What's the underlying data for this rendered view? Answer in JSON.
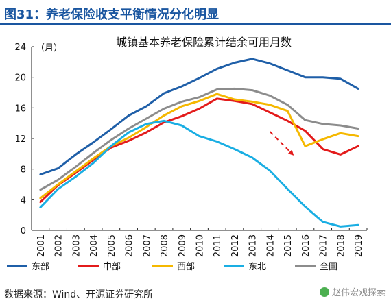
{
  "figure": {
    "title": "图31：养老保险收支平衡情况分化明显",
    "source": "数据来源：Wind、开源证券研究所",
    "watermark": "赵伟宏观探索"
  },
  "chart_data": {
    "type": "line",
    "title": "城镇基本养老保险累计结余可用月数",
    "ylabel": "（月）",
    "xlabel": "",
    "x": [
      "2001",
      "2002",
      "2003",
      "2004",
      "2005",
      "2006",
      "2007",
      "2008",
      "2009",
      "2010",
      "2011",
      "2012",
      "2013",
      "2014",
      "2015",
      "2016",
      "2017",
      "2018",
      "2019"
    ],
    "ylim": [
      0,
      24
    ],
    "yticks": [
      0,
      4,
      8,
      12,
      16,
      20,
      24
    ],
    "grid": false,
    "legend_position": "bottom",
    "series": [
      {
        "name": "东部",
        "color": "#1f5fa8",
        "values": [
          7.3,
          8.1,
          9.9,
          11.5,
          13.2,
          15.0,
          16.2,
          17.9,
          18.8,
          19.9,
          21.1,
          21.9,
          22.4,
          21.8,
          20.9,
          20.0,
          20.0,
          19.8,
          18.5
        ]
      },
      {
        "name": "中部",
        "color": "#e31b1b",
        "values": [
          3.7,
          5.9,
          7.5,
          9.2,
          10.8,
          11.7,
          12.8,
          14.1,
          14.9,
          15.9,
          17.2,
          16.9,
          16.5,
          15.4,
          14.3,
          13.0,
          10.6,
          9.9,
          11.0
        ]
      },
      {
        "name": "西部",
        "color": "#f5b800",
        "values": [
          4.2,
          6.0,
          7.7,
          9.4,
          11.0,
          12.1,
          13.5,
          15.0,
          16.2,
          16.9,
          17.8,
          17.1,
          16.8,
          16.4,
          15.6,
          11.0,
          11.9,
          12.7,
          12.3
        ]
      },
      {
        "name": "东北",
        "color": "#1aaee3",
        "values": [
          3.0,
          5.4,
          7.0,
          8.8,
          11.0,
          12.8,
          13.9,
          14.3,
          13.7,
          12.3,
          11.6,
          10.6,
          9.5,
          7.8,
          5.4,
          3.1,
          1.1,
          0.5,
          0.7
        ]
      },
      {
        "name": "全国",
        "color": "#8c8c8c",
        "values": [
          5.3,
          6.6,
          8.3,
          10.1,
          11.8,
          13.3,
          14.6,
          15.9,
          16.8,
          17.4,
          18.4,
          18.5,
          18.3,
          17.6,
          16.4,
          14.4,
          13.9,
          13.7,
          13.3
        ]
      }
    ],
    "annotations": [
      {
        "type": "dashed-arrow",
        "color": "#e31b1b",
        "from": {
          "x": "2014",
          "y": 12.9
        },
        "to": {
          "x": "2015.3",
          "y": 9.9
        }
      }
    ]
  }
}
